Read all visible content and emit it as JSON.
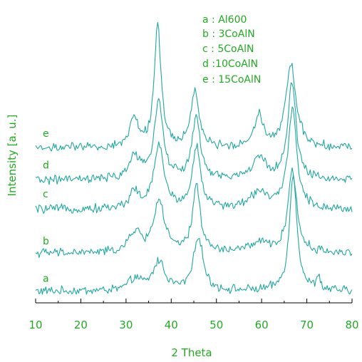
{
  "chart_data": {
    "type": "line",
    "title": "",
    "xlabel": "2 Theta",
    "ylabel": "Intensity [a. u.]",
    "xlim": [
      10,
      80
    ],
    "xticks": [
      "10",
      "20",
      "30",
      "40",
      "50",
      "60",
      "70",
      "80"
    ],
    "legend_position": "top-right",
    "legend": [
      "a : Al600",
      "b : 3CoAlN",
      "c : 5CoAlN",
      "d :10CoAlN",
      "e : 15CoAlN"
    ],
    "colors": {
      "trace": "#20a8a0",
      "text": "#22aa22",
      "axis": "#000000"
    },
    "series": [
      {
        "name": "a",
        "baseline": 0.04,
        "noise": 0.012,
        "peaks": [
          [
            32,
            0.04,
            1.5
          ],
          [
            37.3,
            0.1,
            1.6
          ],
          [
            46,
            0.19,
            1.2
          ],
          [
            67,
            0.4,
            1.0
          ],
          [
            72.5,
            0.05,
            0.4
          ]
        ],
        "offset": 0.05
      },
      {
        "name": "b",
        "baseline": 0.17,
        "noise": 0.012,
        "peaks": [
          [
            32,
            0.07,
            1.5
          ],
          [
            37.3,
            0.18,
            1.4
          ],
          [
            45.6,
            0.23,
            1.0
          ],
          [
            59.5,
            0.03,
            3
          ],
          [
            66.8,
            0.29,
            1.1
          ]
        ],
        "offset": 0.08
      },
      {
        "name": "c",
        "baseline": 0.32,
        "noise": 0.012,
        "peaks": [
          [
            31.8,
            0.06,
            1.2
          ],
          [
            37.3,
            0.22,
            1.3
          ],
          [
            45.6,
            0.21,
            1.1
          ],
          [
            59.5,
            0.06,
            2.2
          ],
          [
            66.8,
            0.35,
            1.1
          ]
        ],
        "offset": 0.04
      },
      {
        "name": "d",
        "baseline": 0.42,
        "noise": 0.012,
        "peaks": [
          [
            31.8,
            0.08,
            1.3
          ],
          [
            37.2,
            0.27,
            1.2
          ],
          [
            45.5,
            0.21,
            1.1
          ],
          [
            59.5,
            0.07,
            2
          ],
          [
            66.7,
            0.33,
            1.1
          ]
        ],
        "offset": 0.02
      },
      {
        "name": "e",
        "baseline": 0.53,
        "noise": 0.012,
        "peaks": [
          [
            31.8,
            0.1,
            1.1
          ],
          [
            37.0,
            0.42,
            0.9
          ],
          [
            45.2,
            0.2,
            1.0
          ],
          [
            59.4,
            0.11,
            1.2
          ],
          [
            66.5,
            0.28,
            1.4
          ]
        ],
        "offset": 0.0
      }
    ]
  }
}
